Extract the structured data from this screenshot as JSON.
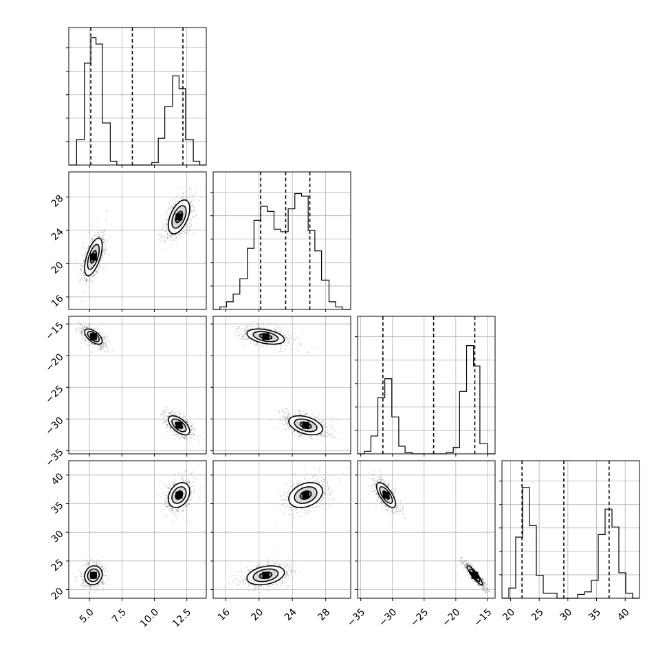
{
  "chart_data": {
    "type": "corner",
    "grid": true,
    "parameters": [
      {
        "range": [
          3.4,
          14.0
        ],
        "ticks": [
          5.0,
          7.5,
          10.0,
          12.5
        ],
        "tick_labels": [
          "5.0",
          "7.5",
          "10.0",
          "12.5"
        ]
      },
      {
        "range": [
          14.5,
          31.0
        ],
        "ticks": [
          16,
          20,
          24,
          28
        ],
        "tick_labels": [
          "16",
          "20",
          "24",
          "28"
        ]
      },
      {
        "range": [
          -35.5,
          -13.8
        ],
        "ticks": [
          -35,
          -30,
          -25,
          -20,
          -15
        ],
        "tick_labels": [
          "−35",
          "−30",
          "−25",
          "−20",
          "−15"
        ]
      },
      {
        "range": [
          18.5,
          42.5
        ],
        "ticks": [
          20,
          25,
          30,
          35,
          40
        ],
        "tick_labels": [
          "20",
          "25",
          "30",
          "35",
          "40"
        ]
      }
    ],
    "quantiles_dashed": [
      [
        5.1,
        8.3,
        12.2
      ],
      [
        20.2,
        23.2,
        26.1
      ],
      [
        -31.5,
        -23.5,
        -17.0
      ],
      [
        22.0,
        29.3,
        37.2
      ]
    ],
    "histograms": [
      {
        "param": 0,
        "bin_edges": [
          3.4,
          4.0,
          4.6,
          5.1,
          5.5,
          6.0,
          6.6,
          7.1,
          7.6,
          8.2,
          8.7,
          9.2,
          9.8,
          10.3,
          10.8,
          11.4,
          11.9,
          12.4,
          13.0,
          13.5,
          14.0
        ],
        "counts": [
          0,
          0.2,
          0.8,
          1.0,
          0.95,
          0.33,
          0.03,
          0,
          0,
          0,
          0,
          0,
          0.02,
          0.21,
          0.46,
          0.7,
          0.6,
          0.2,
          0.03,
          0
        ]
      },
      {
        "param": 1,
        "bin_edges": [
          14.5,
          15.3,
          16.1,
          16.9,
          17.7,
          18.6,
          19.4,
          20.2,
          21.0,
          21.8,
          22.6,
          23.5,
          24.3,
          25.1,
          25.9,
          26.7,
          27.5,
          28.4,
          29.2,
          30.0,
          31.0
        ],
        "counts": [
          0,
          0.02,
          0.06,
          0.12,
          0.24,
          0.48,
          0.7,
          0.81,
          0.77,
          0.63,
          0.61,
          0.79,
          0.91,
          0.89,
          0.62,
          0.46,
          0.23,
          0.06,
          0.02,
          0
        ]
      },
      {
        "param": 2,
        "bin_edges": [
          -35.5,
          -34.4,
          -33.4,
          -32.3,
          -31.2,
          -30.1,
          -29.0,
          -28.0,
          -26.9,
          -25.8,
          -24.8,
          -23.7,
          -22.6,
          -21.5,
          -20.4,
          -19.4,
          -18.3,
          -17.2,
          -16.2,
          -15.0,
          -13.8
        ],
        "counts": [
          0,
          0.02,
          0.14,
          0.44,
          0.59,
          0.29,
          0.06,
          0.01,
          0,
          0,
          0,
          0,
          0,
          0.01,
          0.05,
          0.49,
          0.85,
          0.69,
          0.08,
          0
        ]
      },
      {
        "param": 3,
        "bin_edges": [
          18.5,
          19.7,
          20.9,
          22.1,
          23.3,
          24.5,
          25.7,
          26.9,
          28.1,
          29.3,
          30.5,
          31.7,
          32.9,
          34.1,
          35.3,
          36.5,
          37.7,
          38.9,
          40.1,
          41.3,
          42.5
        ],
        "counts": [
          0,
          0.08,
          0.48,
          0.87,
          0.57,
          0.18,
          0.04,
          0.04,
          0,
          0,
          0,
          0.03,
          0.05,
          0.14,
          0.5,
          0.7,
          0.56,
          0.2,
          0.04,
          0
        ]
      }
    ],
    "modes": [
      {
        "mean": [
          5.3,
          20.8,
          -17.0,
          22.5
        ],
        "sd": [
          0.45,
          1.5,
          0.8,
          1.1
        ]
      },
      {
        "mean": [
          11.9,
          25.6,
          -31.0,
          36.5
        ],
        "sd": [
          0.55,
          1.35,
          1.0,
          1.45
        ]
      }
    ],
    "mode_correlations": [
      [
        [
          1,
          0.6,
          -0.6,
          0.1
        ],
        [
          0.6,
          1,
          -0.4,
          0.3
        ],
        [
          -0.6,
          -0.4,
          1,
          -0.9
        ],
        [
          0.1,
          0.3,
          -0.9,
          1
        ]
      ],
      [
        [
          1,
          0.5,
          -0.6,
          0.3
        ],
        [
          0.5,
          1,
          -0.4,
          0.3
        ],
        [
          -0.6,
          -0.4,
          1,
          -0.7
        ],
        [
          0.3,
          0.3,
          -0.7,
          1
        ]
      ]
    ],
    "contour_sigma_levels": [
      0.5,
      1.0,
      1.5
    ]
  }
}
